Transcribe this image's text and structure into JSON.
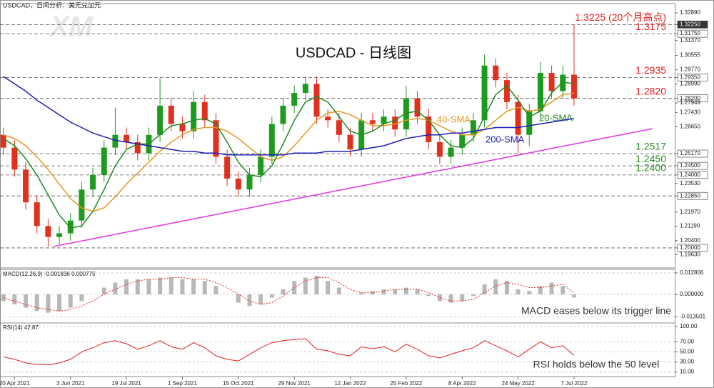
{
  "chart_data": [
    {
      "type": "candlestick",
      "header": "USDCAD，日间分析：美元兑加元",
      "title": "USDCAD - 日线图",
      "watermark": "XM",
      "up_color": "#1e9b1e",
      "down_color": "#e0301e",
      "open": [
        1.262,
        1.255,
        1.243,
        1.225,
        1.212,
        1.206,
        1.208,
        1.215,
        1.232,
        1.24,
        1.255,
        1.262,
        1.258,
        1.252,
        1.262,
        1.278,
        1.268,
        1.264,
        1.28,
        1.27,
        1.25,
        1.238,
        1.232,
        1.24,
        1.25,
        1.268,
        1.278,
        1.285,
        1.29,
        1.272,
        1.27,
        1.262,
        1.254,
        1.27,
        1.268,
        1.272,
        1.265,
        1.282,
        1.272,
        1.258,
        1.25,
        1.255,
        1.262,
        1.27,
        1.3,
        1.292,
        1.28,
        1.262,
        1.275,
        1.296,
        1.286,
        1.295
      ],
      "high": [
        1.266,
        1.259,
        1.247,
        1.229,
        1.216,
        1.212,
        1.219,
        1.236,
        1.244,
        1.259,
        1.277,
        1.266,
        1.262,
        1.266,
        1.293,
        1.282,
        1.272,
        1.286,
        1.284,
        1.274,
        1.254,
        1.242,
        1.244,
        1.254,
        1.272,
        1.282,
        1.289,
        1.294,
        1.294,
        1.276,
        1.274,
        1.266,
        1.274,
        1.274,
        1.276,
        1.276,
        1.289,
        1.286,
        1.276,
        1.262,
        1.259,
        1.266,
        1.274,
        1.306,
        1.304,
        1.296,
        1.284,
        1.279,
        1.302,
        1.3,
        1.3,
        1.3225
      ],
      "low": [
        1.251,
        1.239,
        1.221,
        1.208,
        1.2007,
        1.202,
        1.204,
        1.211,
        1.228,
        1.236,
        1.251,
        1.254,
        1.248,
        1.248,
        1.258,
        1.264,
        1.26,
        1.26,
        1.266,
        1.246,
        1.234,
        1.228,
        1.228,
        1.236,
        1.246,
        1.264,
        1.274,
        1.281,
        1.268,
        1.266,
        1.258,
        1.25,
        1.25,
        1.264,
        1.264,
        1.261,
        1.261,
        1.268,
        1.254,
        1.246,
        1.246,
        1.251,
        1.258,
        1.266,
        1.288,
        1.276,
        1.252,
        1.256,
        1.271,
        1.282,
        1.282,
        1.278
      ],
      "close": [
        1.255,
        1.243,
        1.225,
        1.212,
        1.206,
        1.208,
        1.215,
        1.232,
        1.24,
        1.255,
        1.262,
        1.258,
        1.252,
        1.262,
        1.278,
        1.268,
        1.264,
        1.28,
        1.27,
        1.25,
        1.238,
        1.232,
        1.24,
        1.25,
        1.268,
        1.278,
        1.285,
        1.29,
        1.272,
        1.27,
        1.262,
        1.254,
        1.27,
        1.268,
        1.272,
        1.265,
        1.282,
        1.272,
        1.258,
        1.25,
        1.255,
        1.262,
        1.27,
        1.3,
        1.292,
        1.28,
        1.262,
        1.275,
        1.296,
        1.286,
        1.295,
        1.282
      ],
      "series": [
        {
          "name": "40-SMA",
          "color": "#e8961e",
          "values": [
            1.262,
            1.26,
            1.256,
            1.25,
            1.243,
            1.235,
            1.227,
            1.222,
            1.22,
            1.222,
            1.228,
            1.235,
            1.241,
            1.247,
            1.253,
            1.258,
            1.262,
            1.265,
            1.266,
            1.266,
            1.264,
            1.26,
            1.255,
            1.25,
            1.248,
            1.25,
            1.256,
            1.263,
            1.27,
            1.274,
            1.275,
            1.273,
            1.27,
            1.267,
            1.267,
            1.268,
            1.27,
            1.271,
            1.27,
            1.267,
            1.264,
            1.262,
            1.262,
            1.265,
            1.27,
            1.275,
            1.277,
            1.275,
            1.276,
            1.28,
            1.284,
            1.285
          ]
        },
        {
          "name": "20-SMA",
          "color": "#1e8c1e",
          "values": [
            1.26,
            1.256,
            1.249,
            1.24,
            1.229,
            1.218,
            1.211,
            1.212,
            1.22,
            1.232,
            1.245,
            1.254,
            1.257,
            1.257,
            1.262,
            1.267,
            1.268,
            1.27,
            1.271,
            1.268,
            1.258,
            1.247,
            1.24,
            1.239,
            1.245,
            1.257,
            1.27,
            1.28,
            1.283,
            1.28,
            1.272,
            1.264,
            1.262,
            1.264,
            1.268,
            1.27,
            1.274,
            1.275,
            1.27,
            1.262,
            1.256,
            1.255,
            1.26,
            1.272,
            1.284,
            1.289,
            1.281,
            1.272,
            1.275,
            1.285,
            1.291,
            1.29
          ]
        },
        {
          "name": "200-SMA",
          "color": "#1e1eb4",
          "values": [
            1.294,
            1.29,
            1.286,
            1.281,
            1.277,
            1.273,
            1.269,
            1.266,
            1.263,
            1.261,
            1.259,
            1.258,
            1.257,
            1.256,
            1.255,
            1.254,
            1.253,
            1.253,
            1.252,
            1.252,
            1.251,
            1.251,
            1.251,
            1.251,
            1.251,
            1.251,
            1.252,
            1.252,
            1.252,
            1.253,
            1.253,
            1.253,
            1.254,
            1.255,
            1.256,
            1.258,
            1.26,
            1.261,
            1.262,
            1.262,
            1.263,
            1.263,
            1.264,
            1.265,
            1.266,
            1.266,
            1.266,
            1.267,
            1.268,
            1.269,
            1.27,
            1.271
          ]
        }
      ],
      "trendline": {
        "color": "#e040e0",
        "x": [
          4.5,
          58
        ],
        "values": [
          1.2008,
          1.2654
        ]
      },
      "levels": [
        {
          "value": 1.3225,
          "label": "1.3225 (20个月高点)",
          "color": "#e02020"
        },
        {
          "value": 1.3175,
          "label": "1.3175",
          "color": "#e02020"
        },
        {
          "value": 1.2935,
          "label": "1.2935",
          "color": "#e02020"
        },
        {
          "value": 1.282,
          "label": "1.2820",
          "color": "#e02020"
        },
        {
          "value": 1.2517,
          "label": "1.2517",
          "color": "#2e8b2e"
        },
        {
          "value": 1.245,
          "label": "1.2450",
          "color": "#2e8b2e"
        },
        {
          "value": 1.24,
          "label": "1.2400",
          "color": "#2e8b2e"
        },
        {
          "value": 1.2285
        },
        {
          "value": 1.2
        }
      ],
      "xlim": [
        -0.3,
        60
      ],
      "xticks": [
        {
          "value": 1,
          "label": "20 Apr 2021"
        },
        {
          "value": 6,
          "label": "3 Jun 2021"
        },
        {
          "value": 11,
          "label": "19 Jul 2021"
        },
        {
          "value": 16,
          "label": "1 Sep 2021"
        },
        {
          "value": 21,
          "label": "15 Oct 2021"
        },
        {
          "value": 26,
          "label": "29 Nov 2021"
        },
        {
          "value": 31,
          "label": "12 Jan 2022"
        },
        {
          "value": 36,
          "label": "25 Feb 2022"
        },
        {
          "value": 41,
          "label": "8 Apr 2022"
        },
        {
          "value": 46,
          "label": "24 May 2022"
        },
        {
          "value": 51,
          "label": "7 Jul 2022"
        }
      ],
      "ylim": [
        1.189,
        1.334
      ],
      "yticks": [
        {
          "value": 1.3289,
          "label": "1.32890"
        },
        {
          "value": 1.3225,
          "label": "1.32250"
        },
        {
          "value": 1.3175,
          "label": "1.31750"
        },
        {
          "value": 1.3137,
          "label": "1.31370"
        },
        {
          "value": 1.30555,
          "label": "1.30555"
        },
        {
          "value": 1.2977,
          "label": "1.29770"
        },
        {
          "value": 1.2935,
          "label": "1.29350"
        },
        {
          "value": 1.2899,
          "label": "1.28990"
        },
        {
          "value": 1.282,
          "label": "1.28200"
        },
        {
          "value": 1.27949,
          "label": "1.27949"
        },
        {
          "value": 1.2743,
          "label": "1.27430"
        },
        {
          "value": 1.2665,
          "label": "1.26650"
        },
        {
          "value": 1.2517,
          "label": "1.25170"
        },
        {
          "value": 1.245,
          "label": "1.24500"
        },
        {
          "value": 1.24,
          "label": "1.24000"
        },
        {
          "value": 1.2353,
          "label": "1.23530"
        },
        {
          "value": 1.2285,
          "label": "1.22850"
        },
        {
          "value": 1.2197,
          "label": "1.21970"
        },
        {
          "value": 1.2119,
          "label": "1.21190"
        },
        {
          "value": 1.204,
          "label": "1.20400"
        },
        {
          "value": 1.2,
          "label": "1.20000"
        },
        {
          "value": 1.1963,
          "label": "1.19630"
        }
      ]
    },
    {
      "type": "macd",
      "name": "MACD(12,26,9)",
      "annotation": "MACD eases below its trigger line",
      "color": "#b8b8b8",
      "signal_color": "#e02020",
      "values": [
        -0.004,
        -0.006,
        -0.008,
        -0.01,
        -0.011,
        -0.01,
        -0.008,
        -0.004,
        0.0,
        0.004,
        0.007,
        0.009,
        0.009,
        0.009,
        0.01,
        0.01,
        0.009,
        0.009,
        0.008,
        0.005,
        0.0,
        -0.005,
        -0.007,
        -0.006,
        -0.002,
        0.003,
        0.008,
        0.01,
        0.011,
        0.008,
        0.004,
        0.0,
        0.001,
        0.002,
        0.003,
        0.003,
        0.004,
        0.003,
        -0.001,
        -0.004,
        -0.005,
        -0.004,
        -0.001,
        0.006,
        0.009,
        0.008,
        0.003,
        0.002,
        0.005,
        0.007,
        0.005,
        -0.001836
      ],
      "signal": [
        -0.002,
        -0.004,
        -0.006,
        -0.008,
        -0.009,
        -0.01,
        -0.009,
        -0.007,
        -0.004,
        0.0,
        0.003,
        0.006,
        0.008,
        0.009,
        0.009,
        0.01,
        0.01,
        0.009,
        0.009,
        0.007,
        0.004,
        0.0,
        -0.004,
        -0.006,
        -0.005,
        -0.001,
        0.004,
        0.008,
        0.01,
        0.01,
        0.007,
        0.003,
        0.001,
        0.001,
        0.002,
        0.003,
        0.003,
        0.003,
        0.001,
        -0.002,
        -0.004,
        -0.004,
        -0.003,
        0.001,
        0.005,
        0.007,
        0.006,
        0.004,
        0.004,
        0.005,
        0.006,
        0.000775
      ],
      "ylim": [
        -0.0171,
        0.0149
      ],
      "yticks": [
        0.012806,
        {
          "value": 0,
          "label": "0.000000"
        },
        -0.013501
      ]
    },
    {
      "type": "line",
      "name": "RSI(14)",
      "annotation": "RSI holds below the 50 level",
      "color": "#e02020",
      "values": [
        40,
        35,
        28,
        25,
        24,
        28,
        35,
        50,
        58,
        68,
        72,
        66,
        55,
        62,
        72,
        60,
        55,
        68,
        58,
        42,
        35,
        32,
        45,
        58,
        68,
        72,
        74,
        76,
        55,
        52,
        45,
        42,
        60,
        56,
        60,
        50,
        65,
        55,
        42,
        38,
        45,
        52,
        58,
        72,
        62,
        52,
        40,
        55,
        70,
        58,
        62,
        42.87
      ],
      "ylim": [
        1,
        107
      ],
      "yticks": [
        {
          "value": 100,
          "label": "100.00"
        },
        {
          "value": 70,
          "label": "70.00"
        },
        {
          "value": 50,
          "label": "50.00"
        },
        {
          "value": 30,
          "label": "30.00"
        },
        {
          "value": 10,
          "label": "10.00"
        }
      ]
    }
  ]
}
